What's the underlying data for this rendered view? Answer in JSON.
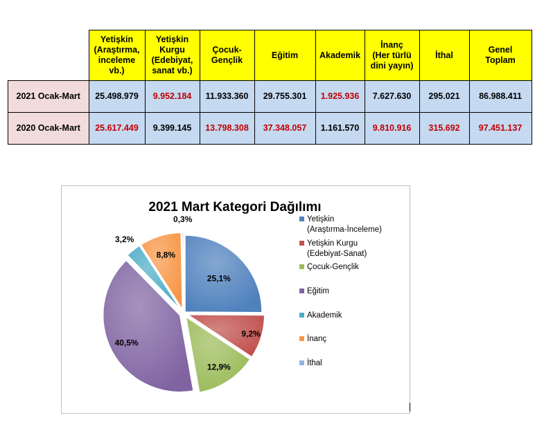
{
  "table": {
    "headers": [
      "Yetişkin\n(Araştırma,\ninceleme\nvb.)",
      "Yetişkin\nKurgu\n(Edebiyat,\nsanat vb.)",
      "Çocuk-\nGençlik",
      "Eğitim",
      "Akademik",
      "İnanç\n(Her türlü\ndini yayın)",
      "İthal",
      "Genel\nToplam"
    ],
    "rows": [
      {
        "label": "2021 Ocak-Mart",
        "values": [
          "25.498.979",
          "9.952.184",
          "11.933.360",
          "29.755.301",
          "1.925.936",
          "7.627.630",
          "295.021",
          "86.988.411"
        ],
        "highlight": [
          false,
          true,
          false,
          false,
          true,
          false,
          false,
          false
        ]
      },
      {
        "label": "2020 Ocak-Mart",
        "values": [
          "25.617.449",
          "9.399.145",
          "13.798.308",
          "37.348.057",
          "1.161.570",
          "9.810.916",
          "315.692",
          "97.451.137"
        ],
        "highlight": [
          true,
          false,
          true,
          true,
          false,
          true,
          true,
          true
        ]
      }
    ],
    "colors": {
      "header_bg": "#ffff00",
      "row_label_bg": "#f2dcdb",
      "cell_bg": "#c5d9f1",
      "highlight_text": "#c00000"
    }
  },
  "chart_data": {
    "type": "pie",
    "title": "2021 Mart Kategori Dağılımı",
    "slices": [
      {
        "label": "Yetişkin (Araştırma-İnceleme)",
        "legend": [
          "Yetişkin",
          "(Araştırma-İnceleme)"
        ],
        "value": 25.1,
        "display": "25,1%",
        "color": "#4f81bd",
        "exploded": false
      },
      {
        "label": "Yetişkin Kurgu (Edebiyat-Sanat)",
        "legend": [
          "Yetişkin Kurgu",
          "(Edebiyat-Sanat)"
        ],
        "value": 9.2,
        "display": "9,2%",
        "color": "#c0504d",
        "exploded": true
      },
      {
        "label": "Çocuk-Gençlik",
        "legend": [
          "Çocuk-Gençlik"
        ],
        "value": 12.9,
        "display": "12,9%",
        "color": "#9bbb59",
        "exploded": true
      },
      {
        "label": "Eğitim",
        "legend": [
          "Eğitim"
        ],
        "value": 40.5,
        "display": "40,5%",
        "color": "#8064a2",
        "exploded": true
      },
      {
        "label": "Akademik",
        "legend": [
          "Akademik"
        ],
        "value": 3.2,
        "display": "3,2%",
        "color": "#4bacc6",
        "exploded": true
      },
      {
        "label": "İnanç",
        "legend": [
          "İnanç"
        ],
        "value": 8.8,
        "display": "8,8%",
        "color": "#f79646",
        "exploded": true
      },
      {
        "label": "İthal",
        "legend": [
          "İthal"
        ],
        "value": 0.3,
        "display": "0,3%",
        "color": "#8eb4e3",
        "exploded": true
      }
    ],
    "legend_position": "right"
  }
}
